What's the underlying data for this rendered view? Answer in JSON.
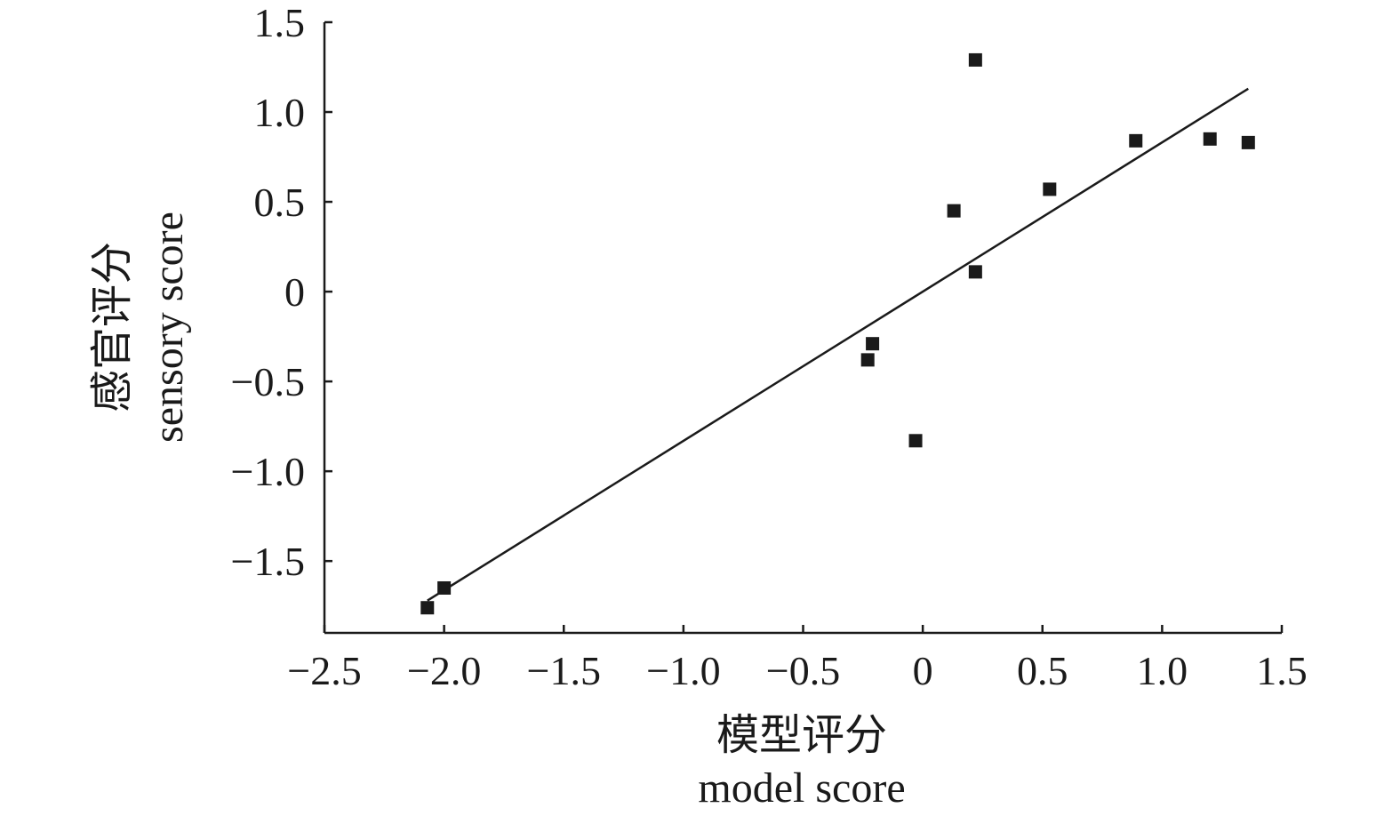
{
  "chart_data": {
    "type": "scatter",
    "xlabel_cn": "模型评分",
    "xlabel_en": "model score",
    "ylabel_cn": "感官评分",
    "ylabel_en": "sensory score",
    "xlim": [
      -2.5,
      1.5
    ],
    "ylim": [
      -1.9,
      1.5
    ],
    "x_ticks": [
      -2.5,
      -2.0,
      -1.5,
      -1.0,
      -0.5,
      0,
      0.5,
      1.0,
      1.5
    ],
    "x_tick_labels": [
      "−2.5",
      "−2.0",
      "−1.5",
      "−1.0",
      "−0.5",
      "0",
      "0.5",
      "1.0",
      "1.5"
    ],
    "y_ticks": [
      1.5,
      1.0,
      0.5,
      0,
      -0.5,
      -1.0,
      -1.5
    ],
    "y_tick_labels": [
      "1.5",
      "1.0",
      "0.5",
      "0",
      "−0.5",
      "−1.0",
      "−1.5"
    ],
    "grid": false,
    "points": [
      {
        "x": -2.07,
        "y": -1.76
      },
      {
        "x": -2.0,
        "y": -1.65
      },
      {
        "x": -0.23,
        "y": -0.38
      },
      {
        "x": -0.21,
        "y": -0.29
      },
      {
        "x": -0.03,
        "y": -0.83
      },
      {
        "x": 0.13,
        "y": 0.45
      },
      {
        "x": 0.22,
        "y": 0.11
      },
      {
        "x": 0.22,
        "y": 1.29
      },
      {
        "x": 0.53,
        "y": 0.57
      },
      {
        "x": 0.89,
        "y": 0.84
      },
      {
        "x": 1.2,
        "y": 0.85
      },
      {
        "x": 1.36,
        "y": 0.83
      }
    ],
    "fit_line": {
      "x": [
        -2.07,
        1.36
      ],
      "y": [
        -1.72,
        1.13
      ]
    },
    "marker_color": "#1a1a1a",
    "line_color": "#1a1a1a"
  }
}
